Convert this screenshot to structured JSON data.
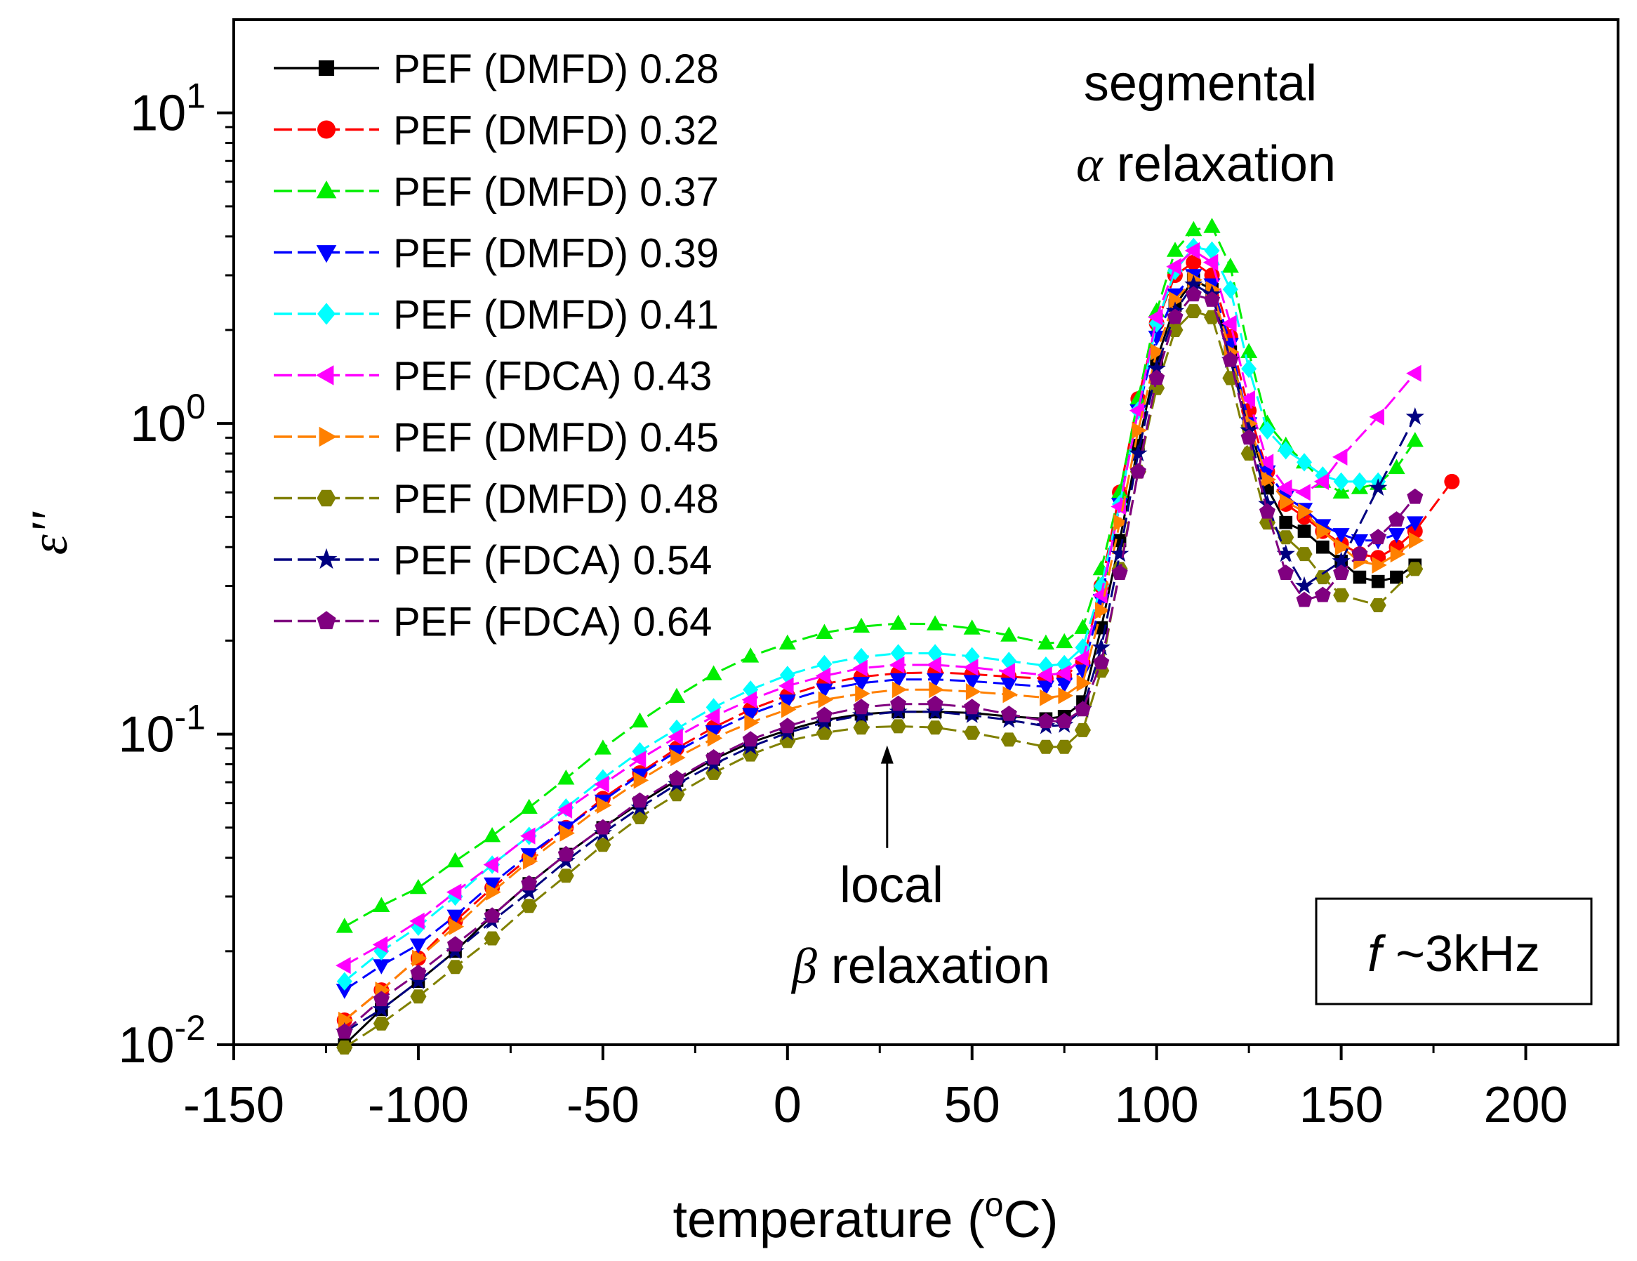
{
  "chart_data": {
    "type": "line",
    "xlabel_parts": {
      "before": "temperature (",
      "superscript": "o",
      "after": "C)"
    },
    "ylabel": "ε''",
    "xlim": [
      -150,
      225
    ],
    "ylim_log10": [
      -2,
      1.3
    ],
    "y_scale": "log",
    "x_ticks": [
      -150,
      -100,
      -50,
      0,
      50,
      100,
      150,
      200
    ],
    "x_tick_labels": [
      "-150",
      "-100",
      "-50",
      "0",
      "50",
      "100",
      "150",
      "200"
    ],
    "y_ticks": [
      {
        "value": 10,
        "base": "10",
        "exp": "1"
      },
      {
        "value": 1,
        "base": "10",
        "exp": "0"
      },
      {
        "value": 0.1,
        "base": "10",
        "exp": "-1"
      },
      {
        "value": 0.01,
        "base": "10",
        "exp": "-2"
      }
    ],
    "legend_position": "top-left",
    "annotations": {
      "alpha": {
        "line1": "segmental",
        "greek": "α",
        "line2": " relaxation"
      },
      "beta": {
        "line1": "local",
        "greek": "β",
        "line2": " relaxation",
        "arrow_x": 27,
        "arrow_y_from": 0.043,
        "arrow_y_to": 0.092
      },
      "freq": {
        "italic": "f",
        "text": " ~3kHz"
      }
    },
    "series": [
      {
        "name": "PEF (DMFD) 0.28",
        "color": "#000000",
        "marker": "square",
        "dash": false,
        "x": [
          -120,
          -110,
          -100,
          -90,
          -80,
          -70,
          -60,
          -50,
          -40,
          -30,
          -20,
          -10,
          0,
          10,
          20,
          30,
          40,
          50,
          60,
          70,
          75,
          80,
          85,
          90,
          95,
          100,
          105,
          110,
          115,
          120,
          125,
          130,
          135,
          140,
          145,
          150,
          155,
          160,
          165,
          170
        ],
        "y": [
          0.01,
          0.013,
          0.016,
          0.02,
          0.026,
          0.033,
          0.041,
          0.05,
          0.06,
          0.071,
          0.083,
          0.094,
          0.103,
          0.111,
          0.116,
          0.118,
          0.118,
          0.117,
          0.114,
          0.112,
          0.114,
          0.127,
          0.22,
          0.42,
          0.85,
          1.6,
          2.4,
          2.9,
          2.7,
          1.7,
          1.0,
          0.62,
          0.48,
          0.45,
          0.4,
          0.36,
          0.32,
          0.31,
          0.32,
          0.35
        ]
      },
      {
        "name": "PEF (DMFD) 0.32",
        "color": "#ff0000",
        "marker": "circle",
        "dash": true,
        "x": [
          -120,
          -110,
          -100,
          -90,
          -80,
          -70,
          -60,
          -50,
          -40,
          -30,
          -20,
          -10,
          0,
          10,
          20,
          30,
          40,
          50,
          60,
          70,
          75,
          80,
          85,
          90,
          95,
          100,
          105,
          110,
          115,
          120,
          125,
          130,
          135,
          140,
          145,
          150,
          155,
          160,
          165,
          170,
          180
        ],
        "y": [
          0.012,
          0.015,
          0.019,
          0.025,
          0.032,
          0.04,
          0.05,
          0.062,
          0.075,
          0.09,
          0.105,
          0.12,
          0.133,
          0.145,
          0.153,
          0.157,
          0.158,
          0.156,
          0.153,
          0.151,
          0.154,
          0.17,
          0.3,
          0.6,
          1.2,
          2.1,
          3.0,
          3.3,
          3.0,
          1.9,
          1.1,
          0.7,
          0.55,
          0.5,
          0.45,
          0.41,
          0.38,
          0.37,
          0.4,
          0.45,
          0.65
        ]
      },
      {
        "name": "PEF (DMFD) 0.37",
        "color": "#00ee00",
        "marker": "triangle-up",
        "dash": true,
        "x": [
          -120,
          -110,
          -100,
          -90,
          -80,
          -70,
          -60,
          -50,
          -40,
          -30,
          -20,
          -10,
          0,
          10,
          20,
          30,
          40,
          50,
          60,
          70,
          75,
          80,
          85,
          90,
          95,
          100,
          105,
          110,
          115,
          120,
          125,
          130,
          135,
          140,
          145,
          150,
          155,
          160,
          165,
          170
        ],
        "y": [
          0.024,
          0.028,
          0.032,
          0.039,
          0.047,
          0.058,
          0.072,
          0.09,
          0.11,
          0.132,
          0.156,
          0.178,
          0.196,
          0.212,
          0.222,
          0.227,
          0.226,
          0.219,
          0.208,
          0.196,
          0.198,
          0.22,
          0.34,
          0.6,
          1.2,
          2.3,
          3.6,
          4.2,
          4.3,
          3.2,
          1.7,
          1.0,
          0.85,
          0.75,
          0.65,
          0.6,
          0.62,
          0.64,
          0.72,
          0.88
        ]
      },
      {
        "name": "PEF (DMFD) 0.39",
        "color": "#0000ff",
        "marker": "triangle-down",
        "dash": true,
        "x": [
          -120,
          -110,
          -100,
          -90,
          -80,
          -70,
          -60,
          -50,
          -40,
          -30,
          -20,
          -10,
          0,
          10,
          20,
          30,
          40,
          50,
          60,
          70,
          75,
          80,
          85,
          90,
          95,
          100,
          105,
          110,
          115,
          120,
          125,
          130,
          135,
          140,
          145,
          150,
          155,
          160,
          165,
          170
        ],
        "y": [
          0.015,
          0.018,
          0.021,
          0.026,
          0.033,
          0.041,
          0.05,
          0.061,
          0.074,
          0.088,
          0.102,
          0.116,
          0.128,
          0.139,
          0.146,
          0.15,
          0.15,
          0.148,
          0.145,
          0.142,
          0.145,
          0.16,
          0.27,
          0.55,
          1.1,
          1.9,
          2.6,
          3.0,
          2.8,
          1.8,
          1.0,
          0.7,
          0.58,
          0.53,
          0.47,
          0.44,
          0.42,
          0.42,
          0.44,
          0.48
        ]
      },
      {
        "name": "PEF (DMFD) 0.41",
        "color": "#00ffff",
        "marker": "diamond",
        "dash": true,
        "x": [
          -120,
          -110,
          -100,
          -90,
          -80,
          -70,
          -60,
          -50,
          -40,
          -30,
          -20,
          -10,
          0,
          10,
          20,
          30,
          40,
          50,
          60,
          70,
          75,
          80,
          85,
          90,
          95,
          100,
          105,
          110,
          115,
          120,
          125,
          130,
          135,
          140,
          145,
          150,
          155,
          160
        ],
        "y": [
          0.016,
          0.02,
          0.024,
          0.03,
          0.038,
          0.047,
          0.058,
          0.072,
          0.088,
          0.104,
          0.122,
          0.139,
          0.155,
          0.168,
          0.177,
          0.182,
          0.182,
          0.178,
          0.172,
          0.166,
          0.168,
          0.19,
          0.3,
          0.55,
          1.1,
          2.1,
          3.1,
          3.7,
          3.6,
          2.7,
          1.5,
          0.95,
          0.82,
          0.75,
          0.68,
          0.65,
          0.65,
          0.65
        ]
      },
      {
        "name": "PEF (FDCA) 0.43",
        "color": "#ff00ff",
        "marker": "triangle-left",
        "dash": true,
        "x": [
          -120,
          -110,
          -100,
          -90,
          -80,
          -70,
          -60,
          -50,
          -40,
          -30,
          -20,
          -10,
          0,
          10,
          20,
          30,
          40,
          50,
          60,
          70,
          75,
          80,
          85,
          90,
          95,
          100,
          105,
          110,
          115,
          120,
          125,
          130,
          135,
          140,
          145,
          150,
          160,
          170
        ],
        "y": [
          0.018,
          0.021,
          0.025,
          0.031,
          0.038,
          0.047,
          0.057,
          0.069,
          0.083,
          0.098,
          0.114,
          0.129,
          0.143,
          0.154,
          0.163,
          0.167,
          0.167,
          0.164,
          0.159,
          0.155,
          0.157,
          0.175,
          0.28,
          0.54,
          1.1,
          2.2,
          3.2,
          3.6,
          3.3,
          2.1,
          1.2,
          0.75,
          0.62,
          0.6,
          0.65,
          0.78,
          1.05,
          1.45
        ]
      },
      {
        "name": "PEF (DMFD) 0.45",
        "color": "#ff8000",
        "marker": "triangle-right",
        "dash": true,
        "x": [
          -120,
          -110,
          -100,
          -90,
          -80,
          -70,
          -60,
          -50,
          -40,
          -30,
          -20,
          -10,
          0,
          10,
          20,
          30,
          40,
          50,
          60,
          70,
          75,
          80,
          85,
          90,
          95,
          100,
          105,
          110,
          115,
          120,
          125,
          130,
          135,
          140,
          145,
          150,
          155,
          160,
          165,
          170
        ],
        "y": [
          0.012,
          0.015,
          0.019,
          0.024,
          0.031,
          0.039,
          0.048,
          0.059,
          0.071,
          0.084,
          0.097,
          0.109,
          0.12,
          0.129,
          0.135,
          0.139,
          0.139,
          0.137,
          0.134,
          0.131,
          0.133,
          0.146,
          0.25,
          0.48,
          0.95,
          1.7,
          2.5,
          2.9,
          2.7,
          1.7,
          1.0,
          0.66,
          0.56,
          0.52,
          0.45,
          0.4,
          0.36,
          0.35,
          0.38,
          0.42
        ]
      },
      {
        "name": "PEF (DMFD) 0.48",
        "color": "#808000",
        "marker": "hexagon",
        "dash": true,
        "x": [
          -120,
          -110,
          -100,
          -90,
          -80,
          -70,
          -60,
          -50,
          -40,
          -30,
          -20,
          -10,
          0,
          10,
          20,
          30,
          40,
          50,
          60,
          70,
          75,
          80,
          85,
          90,
          95,
          100,
          105,
          110,
          115,
          120,
          125,
          130,
          135,
          140,
          145,
          150,
          160,
          170
        ],
        "y": [
          0.0098,
          0.0117,
          0.0143,
          0.0178,
          0.022,
          0.028,
          0.035,
          0.044,
          0.054,
          0.064,
          0.075,
          0.086,
          0.095,
          0.101,
          0.105,
          0.106,
          0.105,
          0.101,
          0.096,
          0.091,
          0.091,
          0.103,
          0.16,
          0.34,
          0.7,
          1.3,
          2.0,
          2.3,
          2.2,
          1.4,
          0.8,
          0.48,
          0.43,
          0.38,
          0.32,
          0.28,
          0.26,
          0.34
        ]
      },
      {
        "name": "PEF (FDCA) 0.54",
        "color": "#000080",
        "marker": "star",
        "dash": true,
        "x": [
          -120,
          -110,
          -100,
          -90,
          -80,
          -70,
          -60,
          -50,
          -40,
          -30,
          -20,
          -10,
          0,
          10,
          20,
          30,
          40,
          50,
          60,
          70,
          75,
          80,
          85,
          90,
          95,
          100,
          105,
          110,
          115,
          120,
          125,
          130,
          135,
          140,
          150,
          160,
          170
        ],
        "y": [
          0.011,
          0.013,
          0.016,
          0.02,
          0.025,
          0.031,
          0.039,
          0.048,
          0.058,
          0.069,
          0.08,
          0.091,
          0.101,
          0.109,
          0.115,
          0.118,
          0.118,
          0.115,
          0.111,
          0.106,
          0.107,
          0.12,
          0.19,
          0.38,
          0.8,
          1.5,
          2.3,
          2.8,
          2.6,
          1.6,
          0.95,
          0.55,
          0.38,
          0.3,
          0.36,
          0.62,
          1.05
        ]
      },
      {
        "name": "PEF (FDCA) 0.64",
        "color": "#800080",
        "marker": "pentagon",
        "dash": true,
        "x": [
          -120,
          -110,
          -100,
          -90,
          -80,
          -70,
          -60,
          -50,
          -40,
          -30,
          -20,
          -10,
          0,
          10,
          20,
          30,
          40,
          50,
          60,
          70,
          75,
          80,
          85,
          90,
          95,
          100,
          105,
          110,
          115,
          120,
          125,
          130,
          135,
          140,
          145,
          150,
          155,
          160,
          165,
          170
        ],
        "y": [
          0.011,
          0.014,
          0.017,
          0.021,
          0.026,
          0.033,
          0.041,
          0.05,
          0.061,
          0.072,
          0.084,
          0.096,
          0.106,
          0.115,
          0.122,
          0.125,
          0.125,
          0.122,
          0.116,
          0.11,
          0.11,
          0.12,
          0.17,
          0.33,
          0.7,
          1.4,
          2.2,
          2.6,
          2.5,
          1.6,
          0.9,
          0.52,
          0.33,
          0.27,
          0.28,
          0.33,
          0.38,
          0.43,
          0.49,
          0.58
        ]
      }
    ]
  }
}
